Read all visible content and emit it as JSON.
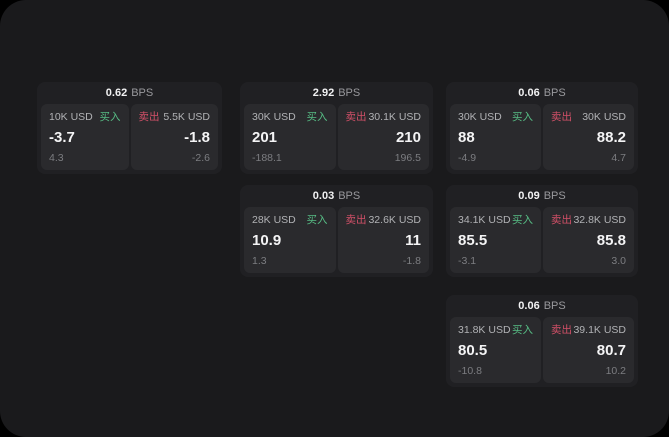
{
  "page": {
    "bps_unit": "BPS",
    "buy_label": "买入",
    "sell_label": "卖出"
  },
  "colors": {
    "background": "#000000",
    "panel": "#1a1a1c",
    "card": "#202023",
    "subpanel": "#2a2a2d",
    "value_text": "#f4f4f5",
    "label_text": "#b1b2b5",
    "muted_text": "#7c7d81",
    "buy_green": "#57bd85",
    "sell_red": "#d25068"
  },
  "cards": [
    {
      "bps": "0.62",
      "buy": {
        "notional": "10K USD",
        "value": "-3.7",
        "delta": "4.3"
      },
      "sell": {
        "notional": "5.5K USD",
        "value": "-1.8",
        "delta": "-2.6"
      }
    },
    {
      "bps": "2.92",
      "buy": {
        "notional": "30K USD",
        "value": "201",
        "delta": "-188.1"
      },
      "sell": {
        "notional": "30.1K USD",
        "value": "210",
        "delta": "196.5"
      }
    },
    {
      "bps": "0.06",
      "buy": {
        "notional": "30K USD",
        "value": "88",
        "delta": "-4.9"
      },
      "sell": {
        "notional": "30K USD",
        "value": "88.2",
        "delta": "4.7"
      }
    },
    {
      "bps": "0.03",
      "buy": {
        "notional": "28K USD",
        "value": "10.9",
        "delta": "1.3"
      },
      "sell": {
        "notional": "32.6K USD",
        "value": "11",
        "delta": "-1.8"
      }
    },
    {
      "bps": "0.09",
      "buy": {
        "notional": "34.1K USD",
        "value": "85.5",
        "delta": "-3.1"
      },
      "sell": {
        "notional": "32.8K USD",
        "value": "85.8",
        "delta": "3.0"
      }
    },
    {
      "bps": "0.06",
      "buy": {
        "notional": "31.8K USD",
        "value": "80.5",
        "delta": "-10.8"
      },
      "sell": {
        "notional": "39.1K USD",
        "value": "80.7",
        "delta": "10.2"
      }
    }
  ]
}
